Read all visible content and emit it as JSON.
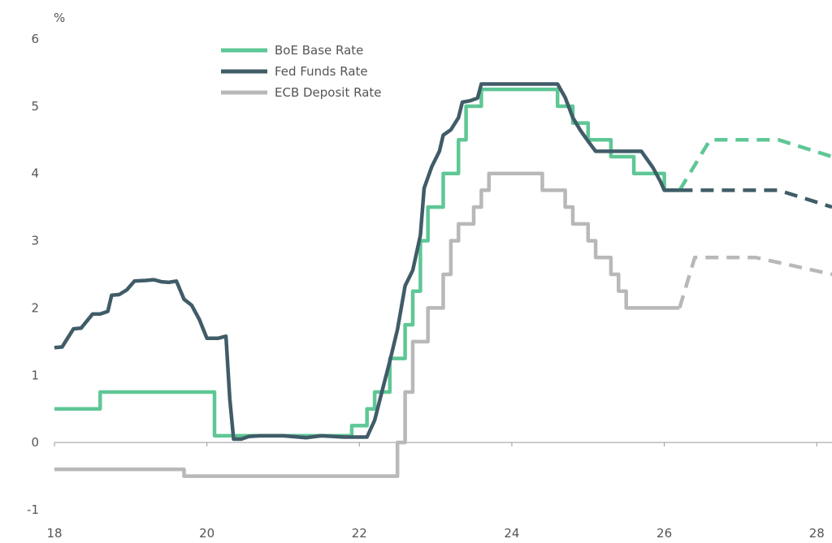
{
  "chart_data": {
    "type": "line",
    "title": "",
    "xlabel": "",
    "ylabel": "",
    "y_unit": "%",
    "xlim": [
      18,
      28.2
    ],
    "ylim": [
      -1,
      6
    ],
    "x_ticks": [
      18,
      20,
      22,
      24,
      26,
      28
    ],
    "x_tick_labels": [
      "18",
      "20",
      "22",
      "24",
      "26",
      "28"
    ],
    "y_ticks": [
      -1,
      0,
      1,
      2,
      3,
      4,
      5,
      6
    ],
    "y_tick_labels": [
      "-1",
      "0",
      "1",
      "2",
      "3",
      "4",
      "5",
      "6"
    ],
    "grid": false,
    "legend_position": "top-left",
    "series": [
      {
        "name": "BoE Base Rate",
        "color": "#5ec795",
        "step": true,
        "actual": [
          [
            18.0,
            0.5
          ],
          [
            18.6,
            0.75
          ],
          [
            20.1,
            0.1
          ],
          [
            21.9,
            0.25
          ],
          [
            22.1,
            0.5
          ],
          [
            22.2,
            0.75
          ],
          [
            22.4,
            1.0
          ],
          [
            22.4,
            1.25
          ],
          [
            22.6,
            1.75
          ],
          [
            22.7,
            2.25
          ],
          [
            22.8,
            3.0
          ],
          [
            22.9,
            3.5
          ],
          [
            23.1,
            4.0
          ],
          [
            23.3,
            4.5
          ],
          [
            23.4,
            5.0
          ],
          [
            23.6,
            5.25
          ],
          [
            24.6,
            5.0
          ],
          [
            24.8,
            4.75
          ],
          [
            25.0,
            4.5
          ],
          [
            25.3,
            4.25
          ],
          [
            25.6,
            4.0
          ],
          [
            26.0,
            3.75
          ],
          [
            26.2,
            3.75
          ]
        ],
        "forecast": [
          [
            26.2,
            3.75
          ],
          [
            26.6,
            4.5
          ],
          [
            27.5,
            4.5
          ],
          [
            28.2,
            4.25
          ]
        ]
      },
      {
        "name": "Fed Funds Rate",
        "color": "#405c68",
        "step": false,
        "actual": [
          [
            18.0,
            1.41
          ],
          [
            18.1,
            1.42
          ],
          [
            18.15,
            1.51
          ],
          [
            18.25,
            1.69
          ],
          [
            18.35,
            1.7
          ],
          [
            18.5,
            1.91
          ],
          [
            18.6,
            1.91
          ],
          [
            18.7,
            1.95
          ],
          [
            18.75,
            2.19
          ],
          [
            18.85,
            2.2
          ],
          [
            18.95,
            2.27
          ],
          [
            19.05,
            2.4
          ],
          [
            19.2,
            2.41
          ],
          [
            19.3,
            2.42
          ],
          [
            19.4,
            2.39
          ],
          [
            19.5,
            2.38
          ],
          [
            19.6,
            2.4
          ],
          [
            19.7,
            2.13
          ],
          [
            19.8,
            2.04
          ],
          [
            19.9,
            1.83
          ],
          [
            20.0,
            1.55
          ],
          [
            20.15,
            1.55
          ],
          [
            20.25,
            1.58
          ],
          [
            20.3,
            0.65
          ],
          [
            20.35,
            0.05
          ],
          [
            20.45,
            0.05
          ],
          [
            20.55,
            0.09
          ],
          [
            20.7,
            0.1
          ],
          [
            21.0,
            0.1
          ],
          [
            21.3,
            0.07
          ],
          [
            21.5,
            0.1
          ],
          [
            21.8,
            0.08
          ],
          [
            22.0,
            0.08
          ],
          [
            22.1,
            0.08
          ],
          [
            22.2,
            0.33
          ],
          [
            22.3,
            0.77
          ],
          [
            22.4,
            1.21
          ],
          [
            22.5,
            1.68
          ],
          [
            22.6,
            2.33
          ],
          [
            22.7,
            2.56
          ],
          [
            22.8,
            3.08
          ],
          [
            22.85,
            3.78
          ],
          [
            22.95,
            4.1
          ],
          [
            23.05,
            4.33
          ],
          [
            23.1,
            4.57
          ],
          [
            23.2,
            4.65
          ],
          [
            23.3,
            4.83
          ],
          [
            23.35,
            5.06
          ],
          [
            23.45,
            5.08
          ],
          [
            23.55,
            5.12
          ],
          [
            23.6,
            5.33
          ],
          [
            24.6,
            5.33
          ],
          [
            24.7,
            5.13
          ],
          [
            24.8,
            4.83
          ],
          [
            24.9,
            4.64
          ],
          [
            25.0,
            4.48
          ],
          [
            25.1,
            4.33
          ],
          [
            25.5,
            4.33
          ],
          [
            25.7,
            4.33
          ],
          [
            25.85,
            4.09
          ],
          [
            25.95,
            3.88
          ],
          [
            26.0,
            3.75
          ],
          [
            26.2,
            3.75
          ]
        ],
        "forecast": [
          [
            26.2,
            3.75
          ],
          [
            27.0,
            3.75
          ],
          [
            27.5,
            3.75
          ],
          [
            28.2,
            3.5
          ]
        ]
      },
      {
        "name": "ECB Deposit Rate",
        "color": "#b8b8b8",
        "step": true,
        "actual": [
          [
            18.0,
            -0.4
          ],
          [
            19.7,
            -0.5
          ],
          [
            22.5,
            0.0
          ],
          [
            22.6,
            0.75
          ],
          [
            22.7,
            1.5
          ],
          [
            22.9,
            2.0
          ],
          [
            23.1,
            2.5
          ],
          [
            23.2,
            3.0
          ],
          [
            23.3,
            3.25
          ],
          [
            23.5,
            3.5
          ],
          [
            23.6,
            3.75
          ],
          [
            23.7,
            4.0
          ],
          [
            24.4,
            3.75
          ],
          [
            24.7,
            3.5
          ],
          [
            24.8,
            3.25
          ],
          [
            25.0,
            3.0
          ],
          [
            25.1,
            2.75
          ],
          [
            25.3,
            2.5
          ],
          [
            25.4,
            2.25
          ],
          [
            25.5,
            2.0
          ],
          [
            26.2,
            2.0
          ]
        ],
        "forecast": [
          [
            26.2,
            2.0
          ],
          [
            26.4,
            2.75
          ],
          [
            27.2,
            2.75
          ],
          [
            28.2,
            2.5
          ]
        ]
      }
    ]
  }
}
